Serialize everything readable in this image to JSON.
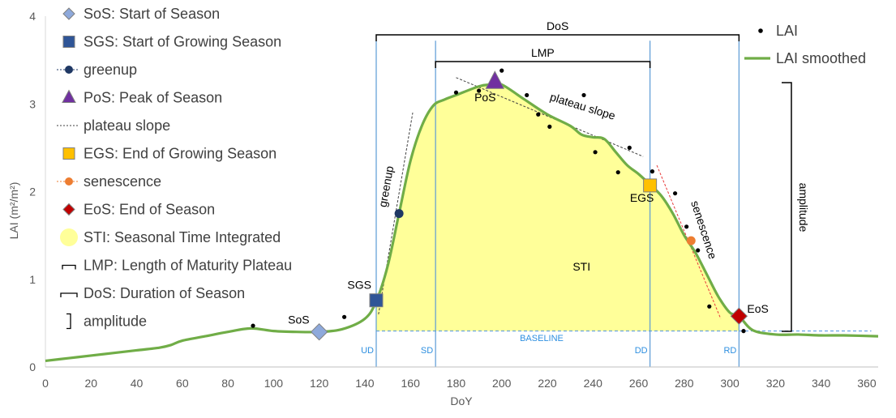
{
  "chart_data": {
    "type": "line",
    "xlabel": "DoY",
    "ylabel": "LAI (m²/m²)",
    "xlim": [
      0,
      365
    ],
    "ylim": [
      0,
      4
    ],
    "x_ticks": [
      0,
      20,
      40,
      60,
      80,
      100,
      120,
      140,
      160,
      180,
      200,
      220,
      240,
      260,
      280,
      300,
      320,
      340,
      360
    ],
    "y_ticks": [
      0,
      1,
      2,
      3,
      4
    ],
    "grid": false,
    "legend_position": "left",
    "legend_right_position": "top-right",
    "colors": {
      "smoothed": "#70AD47",
      "sti_fill": "#FFFF99",
      "vlines": "#5B9BD5",
      "baseline": "#4A90E2",
      "sos": "#8EA9DB",
      "sgs": "#2F5597",
      "greenup": "#1F3864",
      "pos": "#7030A0",
      "egs": "#FFC000",
      "senescence": "#ED7D31",
      "eos": "#C00000"
    },
    "series": [
      {
        "name": "LAI smoothed",
        "x": [
          0,
          10,
          20,
          30,
          40,
          50,
          55,
          60,
          70,
          80,
          90,
          100,
          110,
          120,
          130,
          140,
          145,
          150,
          155,
          160,
          165,
          170,
          175,
          180,
          190,
          195,
          200,
          210,
          220,
          230,
          235,
          240,
          245,
          250,
          255,
          260,
          265,
          270,
          275,
          280,
          285,
          290,
          295,
          300,
          304,
          310,
          320,
          330,
          340,
          350,
          365
        ],
        "y": [
          0.07,
          0.1,
          0.13,
          0.16,
          0.19,
          0.22,
          0.25,
          0.3,
          0.35,
          0.4,
          0.44,
          0.41,
          0.4,
          0.4,
          0.43,
          0.55,
          0.75,
          1.15,
          1.75,
          2.35,
          2.75,
          2.98,
          3.05,
          3.1,
          3.2,
          3.22,
          3.22,
          3.05,
          2.88,
          2.75,
          2.65,
          2.62,
          2.6,
          2.45,
          2.3,
          2.2,
          2.08,
          1.95,
          1.75,
          1.5,
          1.3,
          1.05,
          0.8,
          0.62,
          0.58,
          0.42,
          0.37,
          0.37,
          0.36,
          0.36,
          0.35
        ]
      },
      {
        "name": "LAI",
        "x": [
          91,
          131,
          145,
          155,
          180,
          190,
          200,
          211,
          216,
          221,
          236,
          241,
          251,
          256,
          266,
          276,
          281,
          286,
          291,
          306
        ],
        "y": [
          0.47,
          0.57,
          0.74,
          1.75,
          3.13,
          3.15,
          3.38,
          3.1,
          2.88,
          2.74,
          3.1,
          2.45,
          2.22,
          2.5,
          2.23,
          1.98,
          1.6,
          1.33,
          0.69,
          0.41
        ]
      }
    ],
    "baseline_value": 0.41,
    "phenology_lines": [
      {
        "label": "UD",
        "x": 145
      },
      {
        "label": "SD",
        "x": 171
      },
      {
        "label": "DD",
        "x": 265
      },
      {
        "label": "RD",
        "x": 304
      }
    ],
    "markers": [
      {
        "name": "SoS",
        "label": "SoS",
        "x": 120,
        "y": 0.4,
        "shape": "diamond"
      },
      {
        "name": "SGS",
        "label": "SGS",
        "x": 145,
        "y": 0.76,
        "shape": "square"
      },
      {
        "name": "greenup",
        "label": "",
        "x": 155,
        "y": 1.75,
        "shape": "circle"
      },
      {
        "name": "PoS",
        "label": "PoS",
        "x": 197,
        "y": 3.25,
        "shape": "triangle"
      },
      {
        "name": "EGS",
        "label": "EGS",
        "x": 265,
        "y": 2.07,
        "shape": "square"
      },
      {
        "name": "senescence",
        "label": "",
        "x": 283,
        "y": 1.44,
        "shape": "circle"
      },
      {
        "name": "EoS",
        "label": "EoS",
        "x": 304,
        "y": 0.58,
        "shape": "diamond"
      }
    ],
    "slope_lines": [
      {
        "name": "greenup",
        "x": [
          146,
          161
        ],
        "y": [
          0.6,
          2.9
        ]
      },
      {
        "name": "plateau",
        "x": [
          180,
          262
        ],
        "y": [
          3.3,
          2.4
        ]
      },
      {
        "name": "senescence",
        "x": [
          268,
          296
        ],
        "y": [
          2.3,
          0.55
        ]
      }
    ],
    "brackets": {
      "DoS": {
        "label": "DoS",
        "x1": 145,
        "x2": 304
      },
      "LMP": {
        "label": "LMP",
        "x1": 171,
        "x2": 265
      },
      "amplitude": {
        "label": "amplitude"
      }
    },
    "annotations": {
      "sti": "STI",
      "baseline": "BASELINE",
      "greenup": "greenup",
      "plateau": "plateau slope",
      "senescence": "senescence"
    },
    "legend_left": [
      {
        "label": "SoS: Start of Season",
        "symbol": "diamond",
        "color": "#8EA9DB"
      },
      {
        "label": "SGS: Start of Growing Season",
        "symbol": "square",
        "color": "#2F5597"
      },
      {
        "label": "greenup",
        "symbol": "dot-dash",
        "color": "#1F3864"
      },
      {
        "label": "PoS: Peak of Season",
        "symbol": "triangle",
        "color": "#7030A0"
      },
      {
        "label": "plateau slope",
        "symbol": "dash",
        "color": "#404040"
      },
      {
        "label": "EGS: End of Growing Season",
        "symbol": "square",
        "color": "#FFC000"
      },
      {
        "label": "senescence",
        "symbol": "dot-dash",
        "color": "#ED7D31"
      },
      {
        "label": "EoS: End of Season",
        "symbol": "diamond",
        "color": "#C00000"
      },
      {
        "label": "STI: Seasonal Time Integrated",
        "symbol": "circle-fill",
        "color": "#FFFF99"
      },
      {
        "label": "LMP: Length of Maturity Plateau",
        "symbol": "bracket-short",
        "color": "#000000"
      },
      {
        "label": "DoS: Duration of Season",
        "symbol": "bracket-long",
        "color": "#000000"
      },
      {
        "label": "amplitude",
        "symbol": "bracket-v",
        "color": "#000000"
      }
    ],
    "legend_right": [
      {
        "label": "LAI",
        "symbol": "dot",
        "color": "#000000"
      },
      {
        "label": "LAI smoothed",
        "symbol": "line",
        "color": "#70AD47"
      }
    ]
  }
}
